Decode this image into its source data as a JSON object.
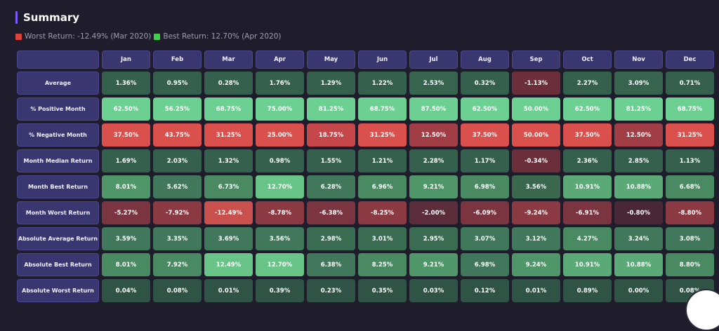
{
  "header": {
    "title": "Summary"
  },
  "legend": {
    "worst_label": "Worst Return: -12.49% (Mar 2020)",
    "best_label": "Best Return: 12.70% (Apr 2020)"
  },
  "months": [
    "Jan",
    "Feb",
    "Mar",
    "Apr",
    "May",
    "Jun",
    "Jul",
    "Aug",
    "Sep",
    "Oct",
    "Nov",
    "Dec"
  ],
  "rows": [
    {
      "label": "Average",
      "values": [
        "1.36%",
        "0.95%",
        "0.28%",
        "1.76%",
        "1.29%",
        "1.22%",
        "2.53%",
        "0.32%",
        "-1.13%",
        "2.27%",
        "3.09%",
        "0.71%"
      ],
      "colors": [
        "#35604d",
        "#35604d",
        "#35604d",
        "#35604d",
        "#35604d",
        "#35604d",
        "#36644f",
        "#35604d",
        "#6a2f3a",
        "#35604d",
        "#36644f",
        "#35604d"
      ]
    },
    {
      "label": "% Positive Month",
      "values": [
        "62.50%",
        "56.25%",
        "68.75%",
        "75.00%",
        "81.25%",
        "68.75%",
        "87.50%",
        "62.50%",
        "50.00%",
        "62.50%",
        "81.25%",
        "68.75%"
      ],
      "colors": [
        "#6cd093",
        "#6cd093",
        "#6cd093",
        "#6cd093",
        "#6cd093",
        "#6cd093",
        "#6cd093",
        "#6cd093",
        "#6cd093",
        "#6cd093",
        "#6cd093",
        "#6cd093"
      ]
    },
    {
      "label": "% Negative Month",
      "values": [
        "37.50%",
        "43.75%",
        "31.25%",
        "25.00%",
        "18.75%",
        "31.25%",
        "12.50%",
        "37.50%",
        "50.00%",
        "37.50%",
        "12.50%",
        "31.25%"
      ],
      "colors": [
        "#d9504c",
        "#d9504c",
        "#d9504c",
        "#d9504c",
        "#c5474a",
        "#d9504c",
        "#a13e45",
        "#d9504c",
        "#d9504c",
        "#d9504c",
        "#a13e45",
        "#d9504c"
      ]
    },
    {
      "label": "Month Median Return",
      "values": [
        "1.69%",
        "2.03%",
        "1.32%",
        "0.98%",
        "1.55%",
        "1.21%",
        "2.28%",
        "1.17%",
        "-0.34%",
        "2.36%",
        "2.85%",
        "1.13%"
      ],
      "colors": [
        "#35604d",
        "#35604d",
        "#35604d",
        "#35604d",
        "#35604d",
        "#35604d",
        "#35604d",
        "#35604d",
        "#6a2f3a",
        "#35604d",
        "#35604d",
        "#35604d"
      ]
    },
    {
      "label": "Month Best Return",
      "values": [
        "8.01%",
        "5.62%",
        "6.73%",
        "12.70%",
        "6.28%",
        "6.96%",
        "9.21%",
        "6.98%",
        "3.56%",
        "10.91%",
        "10.88%",
        "6.68%"
      ],
      "colors": [
        "#4f9668",
        "#41775a",
        "#4a8a63",
        "#68c487",
        "#41775a",
        "#4a8a63",
        "#4f9668",
        "#4a8a63",
        "#39684f",
        "#5aa976",
        "#5aa976",
        "#4a8a63"
      ]
    },
    {
      "label": "Month Worst Return",
      "values": [
        "-5.27%",
        "-7.92%",
        "-12.49%",
        "-8.78%",
        "-6.38%",
        "-8.25%",
        "-2.00%",
        "-6.09%",
        "-9.24%",
        "-6.91%",
        "-0.80%",
        "-8.80%"
      ],
      "colors": [
        "#7a3540",
        "#8b3a43",
        "#c9504c",
        "#8b3a43",
        "#7a3540",
        "#8b3a43",
        "#5b2c39",
        "#7a3540",
        "#8b3a43",
        "#7a3540",
        "#4a2736",
        "#8b3a43"
      ]
    },
    {
      "label": "Absolute Average Return",
      "values": [
        "3.59%",
        "3.35%",
        "3.69%",
        "3.56%",
        "2.98%",
        "3.01%",
        "2.95%",
        "3.07%",
        "3.12%",
        "4.27%",
        "3.24%",
        "3.08%"
      ],
      "colors": [
        "#41775a",
        "#41775a",
        "#41775a",
        "#41775a",
        "#3a6c52",
        "#3a6c52",
        "#3a6c52",
        "#41775a",
        "#41775a",
        "#4a8a63",
        "#41775a",
        "#41775a"
      ]
    },
    {
      "label": "Absolute Best Return",
      "values": [
        "8.01%",
        "7.92%",
        "12.49%",
        "12.70%",
        "6.38%",
        "8.25%",
        "9.21%",
        "6.98%",
        "9.24%",
        "10.91%",
        "10.88%",
        "8.80%"
      ],
      "colors": [
        "#4a8a63",
        "#4a8a63",
        "#68c487",
        "#68c487",
        "#41775a",
        "#4a8a63",
        "#4f9668",
        "#41775a",
        "#4f9668",
        "#5aa976",
        "#5aa976",
        "#4a8a63"
      ]
    },
    {
      "label": "Absolute Worst Return",
      "values": [
        "0.04%",
        "0.08%",
        "0.01%",
        "0.39%",
        "0.23%",
        "0.35%",
        "0.03%",
        "0.12%",
        "0.01%",
        "0.89%",
        "0.00%",
        "0.08%"
      ],
      "colors": [
        "#2f5445",
        "#2f5445",
        "#2f5445",
        "#2f5445",
        "#2f5445",
        "#2f5445",
        "#2f5445",
        "#2f5445",
        "#2f5445",
        "#2f5445",
        "#2f5445",
        "#2f5445"
      ]
    }
  ]
}
